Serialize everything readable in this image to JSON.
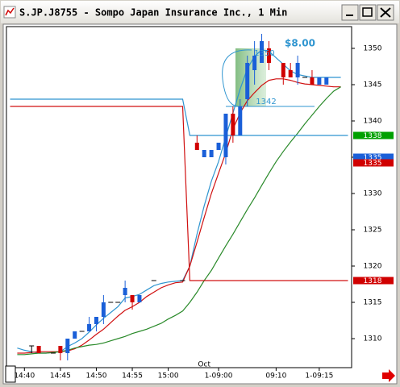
{
  "chart_data": {
    "type": "candlestick",
    "title": "S.JP.J8755 - Sompo Japan Insurance Inc., 1 Min",
    "categories": [
      null,
      null,
      "14:40",
      null,
      null,
      null,
      null,
      "14:45",
      null,
      null,
      null,
      null,
      "14:50",
      null,
      null,
      null,
      null,
      "14:55",
      null,
      null,
      null,
      null,
      "15:00",
      null,
      null,
      null,
      null,
      null,
      null,
      "1-09:00",
      null,
      null,
      null,
      null,
      null,
      null,
      null,
      "09:10",
      null,
      null,
      null,
      null,
      null,
      "1-09:15",
      null,
      null,
      null,
      null
    ],
    "date_label": "Oct",
    "open": [
      null,
      null,
      null,
      1309,
      1309,
      null,
      1308,
      1309,
      1308,
      1310,
      1311,
      1311,
      1312,
      1313,
      1315,
      1315,
      1316,
      1316,
      1315,
      null,
      1318,
      null,
      null,
      null,
      1318,
      null,
      1337,
      1335,
      1335,
      1336,
      1335,
      1341,
      1338,
      1343,
      1347,
      1348,
      1350,
      null,
      1348,
      1347,
      1346,
      1346,
      1346,
      1345,
      1345,
      null,
      null,
      null
    ],
    "high": [
      null,
      null,
      null,
      1309,
      1309,
      null,
      1308,
      1309,
      1310,
      1311,
      1311,
      1313,
      1313,
      1316,
      1315,
      1315,
      1318,
      1316,
      1316,
      null,
      1318,
      null,
      null,
      null,
      1318,
      null,
      1338,
      1336,
      1336,
      1337,
      1341,
      1342,
      1343,
      1349,
      1351,
      1352,
      1351,
      null,
      1348,
      1348,
      1349,
      1346,
      1347,
      1346,
      1346,
      null,
      null,
      null
    ],
    "low": [
      null,
      null,
      null,
      1308,
      1308,
      null,
      1308,
      1307,
      1307,
      1310,
      1311,
      1311,
      1311,
      1312,
      1315,
      1315,
      1315,
      1314,
      1315,
      null,
      1318,
      null,
      null,
      null,
      1318,
      null,
      1336,
      1335,
      1335,
      1336,
      1334,
      1337,
      1338,
      1342,
      1345,
      1348,
      1347,
      null,
      1345,
      1346,
      1345,
      1346,
      1345,
      1345,
      1345,
      null,
      null,
      null
    ],
    "close": [
      null,
      null,
      null,
      1309,
      1308,
      null,
      1308,
      1308,
      1310,
      1311,
      1311,
      1312,
      1313,
      1315,
      1315,
      1315,
      1317,
      1315,
      1316,
      null,
      1318,
      null,
      null,
      null,
      1318,
      null,
      1336,
      1336,
      1336,
      1337,
      1341,
      1338,
      1342,
      1348,
      1349,
      1351,
      1348,
      null,
      1346,
      1346,
      1348,
      1346,
      1345,
      1346,
      1346,
      null,
      null,
      null
    ],
    "up_color": "#1a5fd8",
    "down_color": "#d00000",
    "flat_color": "#000000",
    "lines": [
      {
        "color": "#2f95d0",
        "values": [
          null,
          1308.7,
          1308.4,
          1308.2,
          1308.0,
          1308.0,
          1308.1,
          1308.2,
          1308.9,
          1309.4,
          1310.0,
          1310.9,
          1311.9,
          1312.8,
          1313.6,
          1314.4,
          1315.6,
          1315.8,
          1316.1,
          1316.7,
          1317.3,
          1317.6,
          1317.8,
          1317.9,
          1318.0,
          1320.0,
          1324.4,
          1328.3,
          1331.7,
          1334.4,
          1337.8,
          1341.1,
          1344.4,
          1347.2,
          1348.9,
          1349.8,
          1349.6,
          1348.7,
          1347.8,
          1346.9,
          1346.4,
          1346.2,
          1346.0,
          1346.0,
          1346.0,
          1346.0,
          1346.0,
          null
        ]
      },
      {
        "color": "#d01010",
        "values": [
          null,
          1308.0,
          1308.0,
          1308.1,
          1308.2,
          1308.2,
          1308.2,
          1308.2,
          1308.3,
          1308.6,
          1309.1,
          1309.8,
          1310.6,
          1311.3,
          1312.2,
          1313.1,
          1313.9,
          1314.4,
          1315.0,
          1315.8,
          1316.4,
          1317.0,
          1317.4,
          1317.7,
          1317.8,
          1320.0,
          1323.3,
          1326.7,
          1330.0,
          1332.8,
          1335.6,
          1338.9,
          1341.1,
          1342.8,
          1343.9,
          1344.9,
          1345.6,
          1345.8,
          1345.8,
          1345.6,
          1345.3,
          1345.1,
          1345.0,
          1344.9,
          1344.8,
          1344.7,
          1344.7,
          null
        ]
      },
      {
        "color": "#2a8a2a",
        "values": [
          null,
          1307.8,
          1307.8,
          1307.9,
          1308.0,
          1308.0,
          1308.1,
          1308.2,
          1308.4,
          1308.7,
          1308.9,
          1309.1,
          1309.2,
          1309.4,
          1309.7,
          1310.0,
          1310.3,
          1310.7,
          1311.0,
          1311.3,
          1311.7,
          1312.1,
          1312.7,
          1313.2,
          1313.8,
          1315.0,
          1316.4,
          1318.0,
          1319.4,
          1321.1,
          1322.8,
          1324.4,
          1326.1,
          1327.8,
          1329.4,
          1331.1,
          1332.8,
          1334.4,
          1335.8,
          1337.1,
          1338.3,
          1339.6,
          1340.8,
          1342.0,
          1343.1,
          1344.1,
          1344.7,
          null
        ]
      },
      {
        "color": "#2f95d0",
        "values": [
          1343,
          1343,
          1343,
          1343,
          1343,
          1343,
          1343,
          1343,
          1343,
          1343,
          1343,
          1343,
          1343,
          1343,
          1343,
          1343,
          1343,
          1343,
          1343,
          1343,
          1343,
          1343,
          1343,
          1343,
          1343,
          1338,
          1338,
          1338,
          1338,
          1338,
          1338,
          1338,
          1338,
          1338,
          1338,
          1338,
          1338,
          1338,
          1338,
          1338,
          1338,
          1338,
          1338,
          1338,
          1338,
          1338,
          1338,
          1338
        ]
      },
      {
        "color": "#d01010",
        "values": [
          1342,
          1342,
          1342,
          1342,
          1342,
          1342,
          1342,
          1342,
          1342,
          1342,
          1342,
          1342,
          1342,
          1342,
          1342,
          1342,
          1342,
          1342,
          1342,
          1342,
          1342,
          1342,
          1342,
          1342,
          1342,
          1318,
          1318,
          1318,
          1318,
          1318,
          1318,
          1318,
          1318,
          1318,
          1318,
          1318,
          1318,
          1318,
          1318,
          1318,
          1318,
          1318,
          1318,
          1318,
          1318,
          1318,
          1318,
          1318
        ]
      }
    ],
    "price_tags": [
      {
        "value": 1338,
        "color": "#00a000"
      },
      {
        "value": 1335,
        "color": "#1a5fd8"
      },
      {
        "value": 1335,
        "color": "#d00000"
      },
      {
        "value": 1318,
        "color": "#d00000"
      }
    ],
    "level_labels": [
      {
        "value": 1350
      },
      {
        "value": 1342
      }
    ],
    "move_label": "$8.00",
    "ylim": [
      1306,
      1353
    ],
    "yticks": [
      1310,
      1315,
      1320,
      1325,
      1330,
      1335,
      1340,
      1345,
      1350
    ]
  }
}
